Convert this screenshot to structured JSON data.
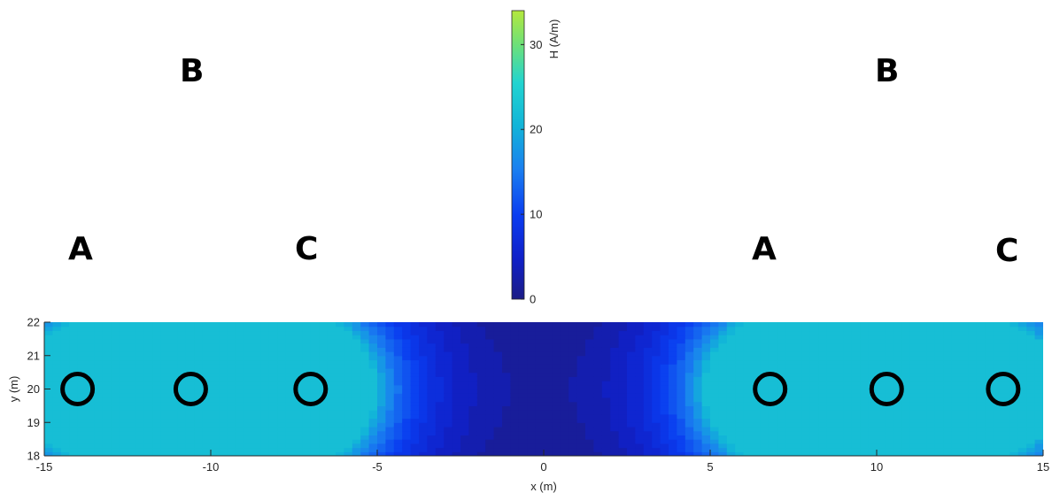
{
  "chart_data": {
    "type": "heatmap",
    "xlabel": "x (m)",
    "ylabel": "y (m)",
    "xlim": [
      -15,
      15
    ],
    "ylim": [
      18,
      22
    ],
    "xticks": [
      -15,
      -10,
      -5,
      0,
      5,
      10,
      15
    ],
    "yticks": [
      18,
      19,
      20,
      21,
      22
    ],
    "colorbar": {
      "label": "H (A/m)",
      "min": 0,
      "max": 34,
      "ticks": [
        0,
        10,
        20,
        30
      ],
      "colormap": "parula"
    },
    "field_range_in_view": [
      1.5,
      22
    ],
    "conductors": [
      {
        "x": -14.0,
        "y": 20,
        "label": "A"
      },
      {
        "x": -10.6,
        "y": 20,
        "label": "B"
      },
      {
        "x": -7.0,
        "y": 20,
        "label": "C"
      },
      {
        "x": 6.8,
        "y": 20,
        "label": "A"
      },
      {
        "x": 10.3,
        "y": 20,
        "label": "B"
      },
      {
        "x": 13.8,
        "y": 20,
        "label": "C"
      }
    ],
    "conductor_radius_m": 0.45
  },
  "colors": {
    "marker_edge": "#000000",
    "axis": "#262626",
    "tick_text": "#262626"
  }
}
